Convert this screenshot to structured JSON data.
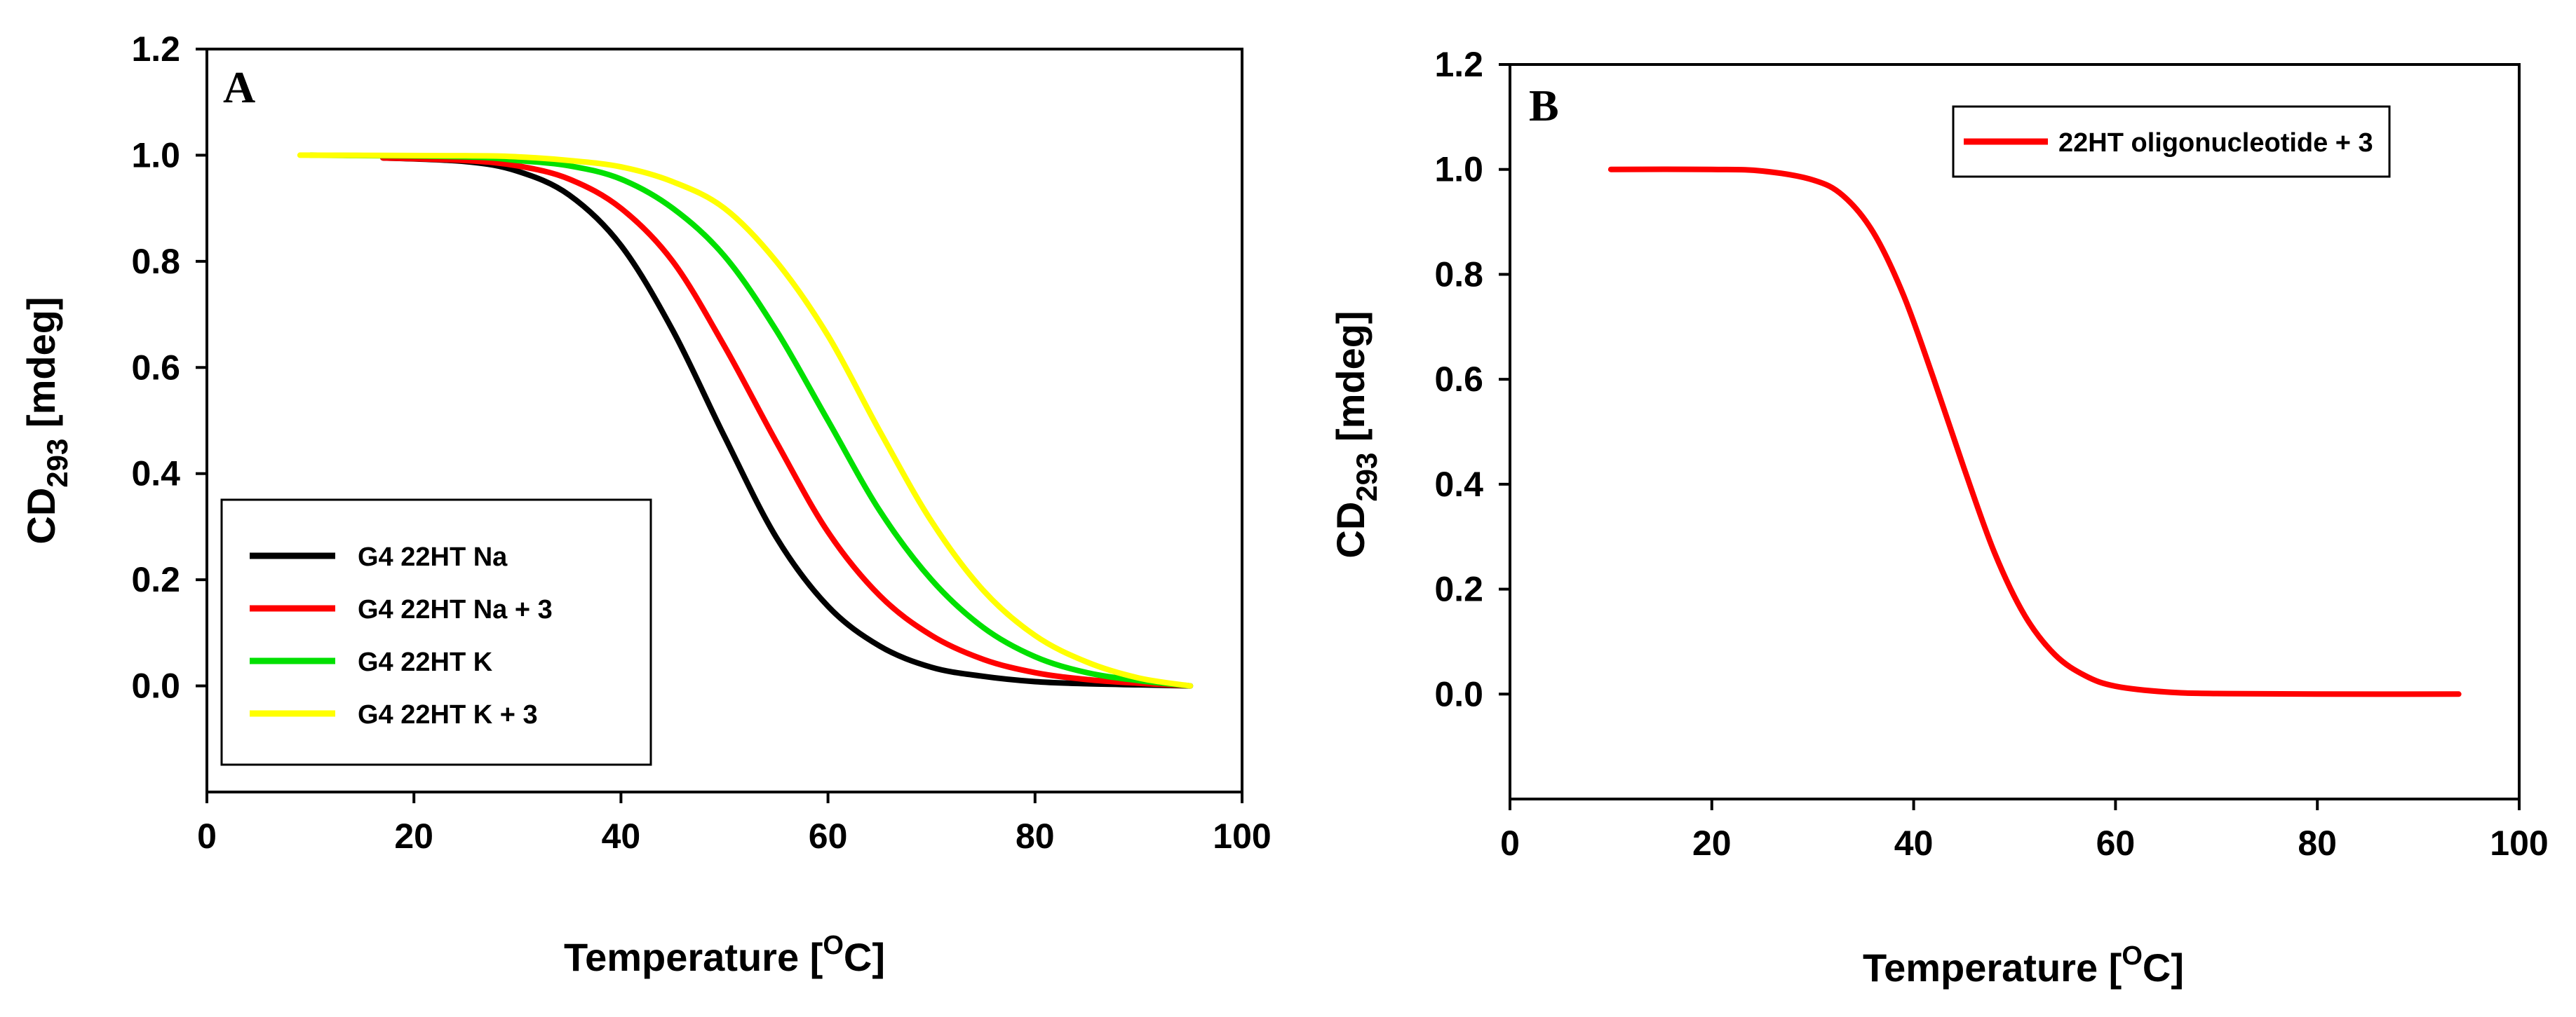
{
  "chart_data": [
    {
      "type": "line",
      "panel_label": "A",
      "xlabel": "Temperature",
      "xlabel_unit_open": "[",
      "xlabel_unit_sup": "O",
      "xlabel_unit_main": "C]",
      "ylabel_main": "CD",
      "ylabel_sub": "293",
      "ylabel_unit": " [mdeg]",
      "xlim": [
        0,
        100
      ],
      "ylim": [
        -0.2,
        1.2
      ],
      "xticks": [
        "0",
        "20",
        "40",
        "60",
        "80",
        "100"
      ],
      "yticks": [
        "0.0",
        "0.2",
        "0.4",
        "0.6",
        "0.8",
        "1.0",
        "1.2"
      ],
      "legend_position": "bottom-left",
      "series": [
        {
          "name": "G4 22HT Na",
          "color": "#000000",
          "x": [
            17,
            25,
            30,
            35,
            40,
            45,
            50,
            55,
            60,
            65,
            70,
            75,
            80,
            85,
            90,
            95
          ],
          "y": [
            0.995,
            0.988,
            0.97,
            0.925,
            0.83,
            0.67,
            0.47,
            0.28,
            0.15,
            0.075,
            0.035,
            0.018,
            0.008,
            0.004,
            0.002,
            0.0
          ]
        },
        {
          "name": "G4 22HT Na + 3",
          "color": "#ff0000",
          "x": [
            17,
            25,
            30,
            35,
            40,
            45,
            50,
            55,
            60,
            65,
            70,
            75,
            80,
            85,
            90,
            95
          ],
          "y": [
            0.995,
            0.99,
            0.98,
            0.955,
            0.9,
            0.8,
            0.64,
            0.46,
            0.29,
            0.17,
            0.095,
            0.05,
            0.025,
            0.012,
            0.005,
            0.0
          ]
        },
        {
          "name": "G4 22HT K",
          "color": "#00e000",
          "x": [
            10,
            25,
            30,
            35,
            40,
            45,
            50,
            55,
            60,
            65,
            70,
            75,
            80,
            85,
            90,
            95
          ],
          "y": [
            1.0,
            0.997,
            0.99,
            0.98,
            0.955,
            0.9,
            0.81,
            0.67,
            0.5,
            0.33,
            0.2,
            0.11,
            0.055,
            0.025,
            0.01,
            0.0
          ]
        },
        {
          "name": "G4 22HT K + 3",
          "color": "#ffff00",
          "x": [
            9,
            25,
            30,
            35,
            40,
            45,
            50,
            55,
            60,
            65,
            70,
            75,
            80,
            85,
            90,
            95
          ],
          "y": [
            1.0,
            0.999,
            0.997,
            0.99,
            0.978,
            0.95,
            0.9,
            0.8,
            0.66,
            0.48,
            0.31,
            0.18,
            0.095,
            0.045,
            0.015,
            0.0
          ]
        }
      ]
    },
    {
      "type": "line",
      "panel_label": "B",
      "xlabel": "Temperature",
      "xlabel_unit_open": "[",
      "xlabel_unit_sup": "O",
      "xlabel_unit_main": "C]",
      "ylabel_main": "CD",
      "ylabel_sub": "293",
      "ylabel_unit": " [mdeg]",
      "xlim": [
        0,
        100
      ],
      "ylim": [
        -0.2,
        1.2
      ],
      "xticks": [
        "0",
        "20",
        "40",
        "60",
        "80",
        "100"
      ],
      "yticks": [
        "0.0",
        "0.2",
        "0.4",
        "0.6",
        "0.8",
        "1.0",
        "1.2"
      ],
      "legend_position": "top-right",
      "series": [
        {
          "name": "22HT oligonucleotide + 3",
          "color": "#ff0000",
          "x": [
            10,
            20,
            25,
            30,
            33,
            36,
            39,
            42,
            45,
            48,
            51,
            54,
            57,
            60,
            65,
            70,
            80,
            94
          ],
          "y": [
            1.0,
            1.0,
            0.997,
            0.98,
            0.95,
            0.88,
            0.76,
            0.6,
            0.43,
            0.27,
            0.15,
            0.075,
            0.035,
            0.015,
            0.004,
            0.001,
            0.0,
            0.0
          ]
        }
      ]
    }
  ]
}
